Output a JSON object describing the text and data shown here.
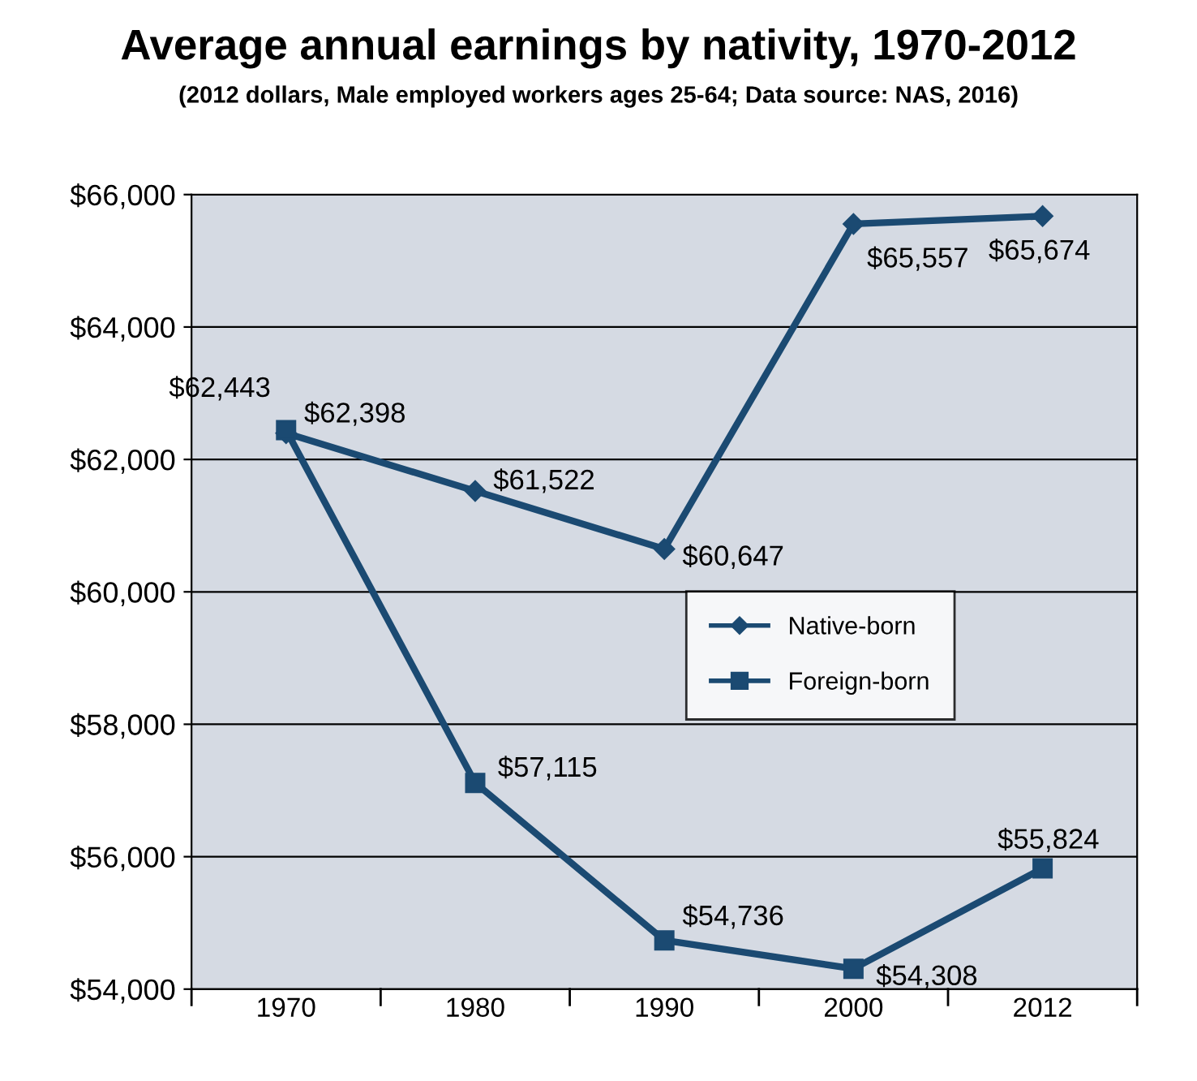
{
  "chart_data": {
    "type": "line",
    "title": "Average annual earnings by nativity, 1970-2012",
    "subtitle": "(2012 dollars, Male employed workers ages 25-64; Data source: NAS, 2016)",
    "categories": [
      "1970",
      "1980",
      "1990",
      "2000",
      "2012"
    ],
    "series": [
      {
        "name": "Native-born",
        "color": "#1b4a72",
        "marker": "diamond",
        "values": [
          62398,
          61522,
          60647,
          65557,
          65674
        ],
        "value_labels": [
          "$62,398",
          "$61,522",
          "$60,647",
          "$65,557",
          "$65,674"
        ]
      },
      {
        "name": "Foreign-born",
        "color": "#1b4a72",
        "marker": "square",
        "values": [
          62443,
          57115,
          54736,
          54308,
          55824
        ],
        "value_labels": [
          "$62,443",
          "$57,115",
          "$54,736",
          "$54,308",
          "$55,824"
        ]
      }
    ],
    "ylim": [
      54000,
      66000
    ],
    "yticks": [
      {
        "value": 54000,
        "label": "$54,000"
      },
      {
        "value": 56000,
        "label": "$56,000"
      },
      {
        "value": 58000,
        "label": "$58,000"
      },
      {
        "value": 60000,
        "label": "$60,000"
      },
      {
        "value": 62000,
        "label": "$62,000"
      },
      {
        "value": 64000,
        "label": "$64,000"
      },
      {
        "value": 66000,
        "label": "$66,000"
      }
    ],
    "grid": "y",
    "legend": "center right",
    "line_style": "solid"
  }
}
